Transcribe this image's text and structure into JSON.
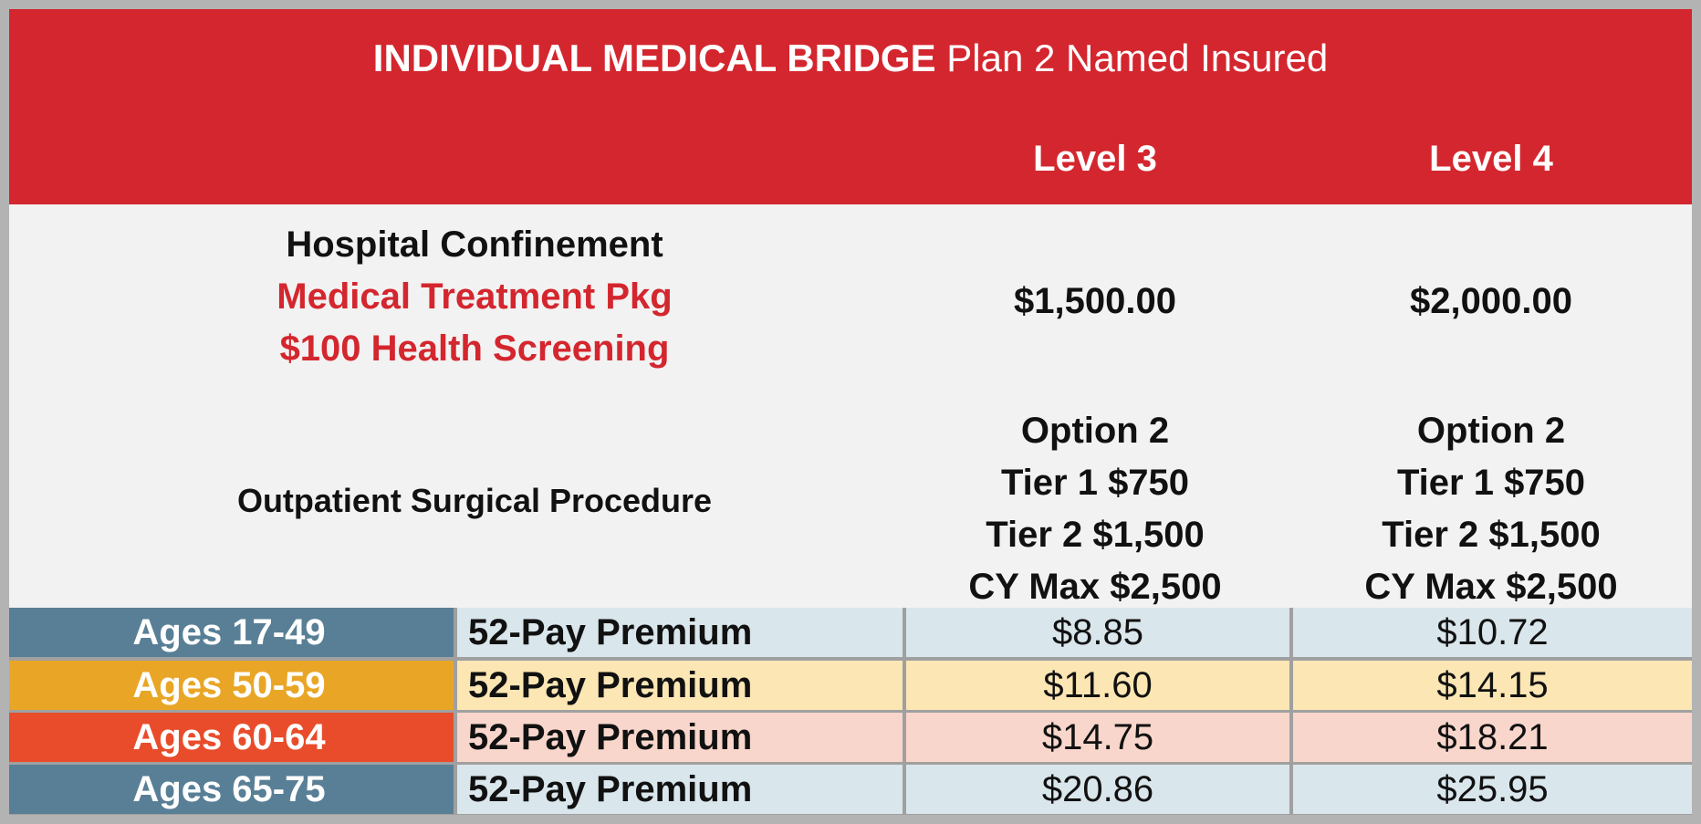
{
  "title": {
    "bold": "INDIVIDUAL MEDICAL BRIDGE",
    "rest": "Plan 2 Named Insured"
  },
  "levels": [
    "Level 3",
    "Level 4"
  ],
  "hospital": {
    "lines": [
      "Hospital Confinement",
      "Medical Treatment Pkg",
      "$100 Health Screening"
    ],
    "values": [
      "$1,500.00",
      "$2,000.00"
    ]
  },
  "outpatient": {
    "label": "Outpatient Surgical Procedure",
    "level3": [
      "Option 2",
      "Tier 1 $750",
      "Tier 2 $1,500",
      "CY Max $2,500"
    ],
    "level4": [
      "Option 2",
      "Tier 1 $750",
      "Tier 2 $1,500",
      "CY Max $2,500"
    ]
  },
  "premium_rows": [
    {
      "age": "Ages 17-49",
      "label": "52-Pay Premium",
      "level3": "$8.85",
      "level4": "$10.72",
      "age_color": "#587f96",
      "row_color": "#d9e6ec"
    },
    {
      "age": "Ages 50-59",
      "label": "52-Pay Premium",
      "level3": "$11.60",
      "level4": "$14.15",
      "age_color": "#e9a626",
      "row_color": "#fbe6b4"
    },
    {
      "age": "Ages 60-64",
      "label": "52-Pay Premium",
      "level3": "$14.75",
      "level4": "$18.21",
      "age_color": "#e84c2a",
      "row_color": "#f9d6cb"
    },
    {
      "age": "Ages 65-75",
      "label": "52-Pay Premium",
      "level3": "$20.86",
      "level4": "$25.95",
      "age_color": "#587f96",
      "row_color": "#d9e6ec"
    }
  ],
  "colors": {
    "header": "#d4262e",
    "body": "#f2f2f2"
  }
}
